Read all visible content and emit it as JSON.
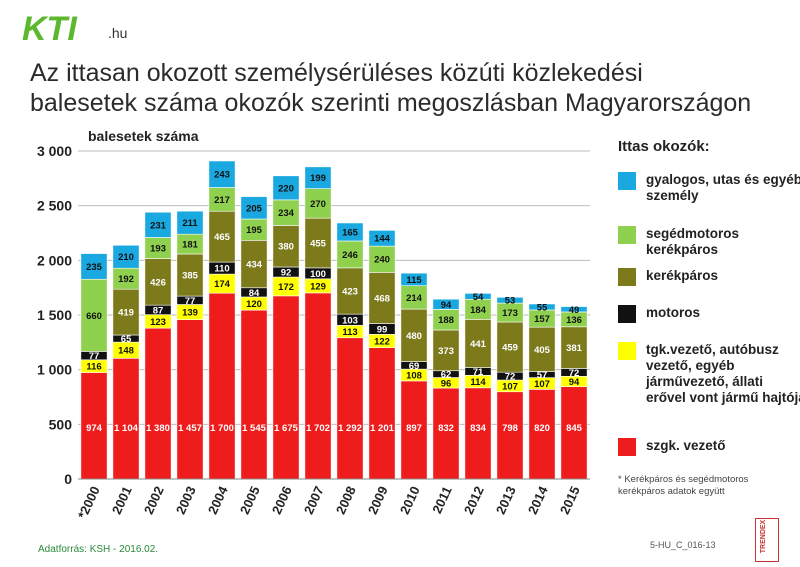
{
  "logo": {
    "text": "KTI",
    "suffix": ".hu"
  },
  "title": {
    "line1": "Az ittasan okozott személysérüléses közúti közlekedési",
    "line2": "balesetek száma okozók szerinti megoszlásban Magyarországon"
  },
  "legend_title": "Ittas okozók:",
  "legend": [
    {
      "key": "gyalogos",
      "label": "gyalogos, utas és egyéb személy",
      "color": "#1aa8e0"
    },
    {
      "key": "segedmotoros",
      "label": "segédmotoros kerékpáros",
      "color": "#8fd14f"
    },
    {
      "key": "kerekparos",
      "label": "kerékpáros",
      "color": "#7d7a1c"
    },
    {
      "key": "motoros",
      "label": "motoros",
      "color": "#111111"
    },
    {
      "key": "tgk",
      "label": "tgk.vezető, autóbusz vezető, egyéb járművezető, állati erővel vont jármű hajtója",
      "color": "#ffff00"
    },
    {
      "key": "szgk",
      "label": "szgk. vezető",
      "color": "#ee1c1c"
    }
  ],
  "footnote": "* Kerékpáros és segédmotoros kerékpáros adatok együtt",
  "source": "Adatforrás: KSH - 2016.02.",
  "code": "5-HU_C_016-13",
  "brand": "TRENDEX",
  "chart_data": {
    "type": "bar",
    "stacked": true,
    "title": "Az ittasan okozott személysérüléses közúti közlekedési balesetek száma okozók szerinti megoszlásban Magyarországon",
    "ylabel": "balesetek száma",
    "xlabel": "",
    "ylim": [
      0,
      3000
    ],
    "yticks": [
      0,
      500,
      1000,
      1500,
      2000,
      2500,
      3000
    ],
    "ytick_labels": [
      "0",
      "500",
      "1 000",
      "1 500",
      "2 000",
      "2 500",
      "3 000"
    ],
    "categories": [
      "*2000",
      "2001",
      "2002",
      "2003",
      "2004",
      "2005",
      "2006",
      "2007",
      "2008",
      "2009",
      "2010",
      "2011",
      "2012",
      "2013",
      "2014",
      "2015"
    ],
    "series": [
      {
        "name": "szgk. vezető",
        "color": "#ee1c1c",
        "values": [
          974,
          1104,
          1380,
          1457,
          1700,
          1545,
          1675,
          1702,
          1292,
          1201,
          897,
          832,
          834,
          798,
          820,
          845
        ],
        "labels": [
          "974",
          "1 104",
          "1 380",
          "1 457",
          "1 700",
          "1 545",
          "1 675",
          "1 702",
          "1 292",
          "1 201",
          "897",
          "832",
          "834",
          "798",
          "820",
          "845"
        ]
      },
      {
        "name": "tgk.vezető, autóbusz vezető, egyéb járművezető, állati erővel vont jármű hajtója",
        "color": "#ffff00",
        "values": [
          116,
          148,
          123,
          139,
          174,
          120,
          172,
          129,
          113,
          122,
          108,
          96,
          114,
          107,
          107,
          94
        ],
        "labels": [
          "116",
          "148",
          "123",
          "139",
          "174",
          "120",
          "172",
          "129",
          "113",
          "122",
          "108",
          "96",
          "114",
          "107",
          "107",
          "94"
        ]
      },
      {
        "name": "motoros",
        "color": "#111111",
        "values": [
          77,
          65,
          87,
          77,
          110,
          84,
          92,
          100,
          103,
          99,
          69,
          62,
          71,
          72,
          57,
          72
        ],
        "labels": [
          "77",
          "65",
          "87",
          "77",
          "110",
          "84",
          "92",
          "100",
          "103",
          "99",
          "69",
          "62",
          "71",
          "72",
          "57",
          "72"
        ]
      },
      {
        "name": "kerékpáros",
        "color": "#7d7a1c",
        "values": [
          0,
          419,
          426,
          385,
          465,
          434,
          380,
          455,
          423,
          468,
          480,
          373,
          441,
          459,
          405,
          381
        ],
        "labels": [
          "",
          "419",
          "426",
          "385",
          "465",
          "434",
          "380",
          "455",
          "423",
          "468",
          "480",
          "373",
          "441",
          "459",
          "405",
          "381"
        ]
      },
      {
        "name": "segédmotoros kerékpáros",
        "color": "#8fd14f",
        "values": [
          660,
          192,
          193,
          181,
          217,
          195,
          234,
          270,
          246,
          240,
          214,
          188,
          184,
          173,
          157,
          136
        ],
        "labels": [
          "660",
          "192",
          "193",
          "181",
          "217",
          "195",
          "234",
          "270",
          "246",
          "240",
          "214",
          "188",
          "184",
          "173",
          "157",
          "136"
        ]
      },
      {
        "name": "gyalogos, utas és egyéb személy",
        "color": "#1aa8e0",
        "values": [
          235,
          210,
          231,
          211,
          243,
          205,
          220,
          199,
          165,
          144,
          115,
          94,
          54,
          53,
          55,
          49
        ],
        "labels": [
          "235",
          "210",
          "231",
          "211",
          "243",
          "205",
          "220",
          "199",
          "165",
          "144",
          "115",
          "94",
          "54",
          "53",
          "55",
          "49"
        ]
      }
    ]
  }
}
